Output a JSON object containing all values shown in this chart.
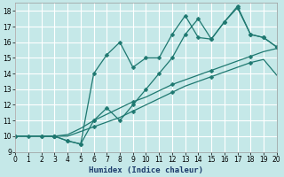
{
  "xlabel": "Humidex (Indice chaleur)",
  "bg_color": "#c5e8e8",
  "grid_color": "#ffffff",
  "line_color": "#1e7870",
  "xlim": [
    0,
    20
  ],
  "ylim": [
    9,
    18.5
  ],
  "xticks": [
    0,
    1,
    2,
    3,
    4,
    5,
    6,
    7,
    8,
    9,
    10,
    11,
    12,
    13,
    14,
    15,
    16,
    17,
    18,
    19,
    20
  ],
  "yticks": [
    9,
    10,
    11,
    12,
    13,
    14,
    15,
    16,
    17,
    18
  ],
  "line1_x": [
    0,
    1,
    2,
    3,
    4,
    5,
    6,
    7,
    8,
    9,
    10,
    11,
    12,
    13,
    14,
    15,
    16,
    17,
    18,
    19,
    20
  ],
  "line1_y": [
    10,
    10,
    10,
    10,
    9.7,
    9.5,
    11.0,
    11.8,
    11.0,
    12.0,
    13.0,
    14.0,
    15.0,
    16.5,
    17.5,
    16.2,
    17.3,
    18.2,
    16.5,
    16.3,
    15.7
  ],
  "line2_x": [
    2,
    3,
    4,
    5,
    6,
    7,
    8,
    9,
    10,
    11,
    12,
    13,
    14,
    15,
    16,
    17,
    18,
    19,
    20
  ],
  "line2_y": [
    10,
    10,
    9.7,
    9.5,
    14.0,
    15.2,
    16.0,
    14.4,
    15.0,
    15.0,
    16.5,
    17.7,
    16.3,
    16.2,
    17.3,
    18.3,
    16.5,
    16.3,
    15.7
  ],
  "line3_x": [
    0,
    1,
    2,
    3,
    4,
    5,
    6,
    7,
    8,
    9,
    10,
    11,
    12,
    13,
    14,
    15,
    16,
    17,
    18,
    19,
    20
  ],
  "line3_y": [
    10,
    10,
    10,
    10,
    10.0,
    10.3,
    10.6,
    10.9,
    11.2,
    11.6,
    12.0,
    12.4,
    12.8,
    13.2,
    13.5,
    13.8,
    14.1,
    14.4,
    14.7,
    14.9,
    13.9
  ],
  "line4_x": [
    0,
    1,
    2,
    3,
    4,
    5,
    6,
    7,
    8,
    9,
    10,
    11,
    12,
    13,
    14,
    15,
    16,
    17,
    18,
    19,
    20
  ],
  "line4_y": [
    10,
    10,
    10,
    10,
    10.1,
    10.5,
    11.0,
    11.4,
    11.8,
    12.2,
    12.5,
    12.9,
    13.3,
    13.6,
    13.9,
    14.2,
    14.5,
    14.8,
    15.1,
    15.4,
    15.6
  ]
}
